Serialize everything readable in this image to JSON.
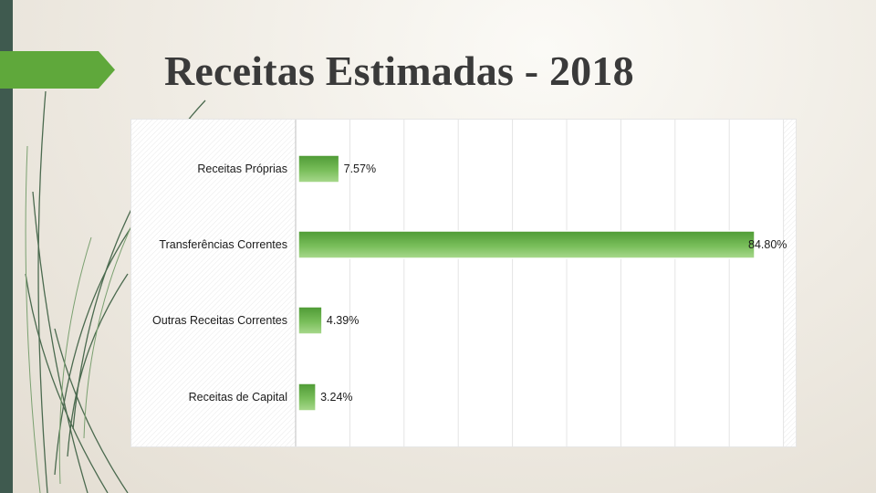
{
  "slide": {
    "title": "Receitas Estimadas - 2018"
  },
  "colors": {
    "accent_green": "#5fa83b",
    "bar_top": "#4e9a35",
    "bar_bottom": "#a9d98e",
    "strip": "#3f5a4f"
  },
  "chart_data": {
    "type": "bar",
    "orientation": "horizontal",
    "categories": [
      "Receitas Próprias",
      "Transferências Correntes",
      "Outras Receitas Correntes",
      "Receitas de Capital"
    ],
    "values": [
      7.57,
      84.8,
      4.39,
      3.24
    ],
    "value_labels": [
      "7.57%",
      "84.80%",
      "4.39%",
      "3.24%"
    ],
    "unit": "%",
    "xlim": [
      0,
      90
    ],
    "grid": true,
    "legend": "none"
  }
}
